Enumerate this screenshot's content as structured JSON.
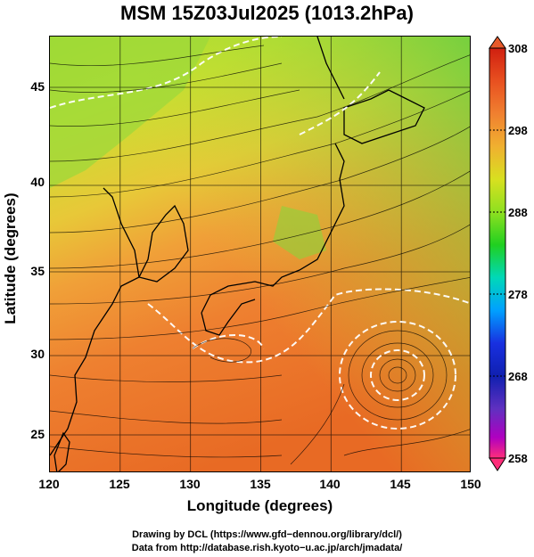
{
  "title": "MSM 15Z03Jul2025 (1013.2hPa)",
  "map": {
    "xlabel": "Longitude (degrees)",
    "ylabel": "Latitude  (degrees)",
    "x_ticks": [
      "120",
      "125",
      "130",
      "135",
      "140",
      "145",
      "150"
    ],
    "y_ticks": [
      "25",
      "30",
      "35",
      "40",
      "45"
    ],
    "lon_range": [
      120,
      150
    ],
    "lat_range": [
      22.4,
      47.6
    ],
    "field": "temperature shading with wind streamlines"
  },
  "colorbar": {
    "ticks": [
      "308",
      "298",
      "288",
      "278",
      "268",
      "258"
    ],
    "range": [
      258,
      308
    ],
    "colors": [
      "#e8e8e8",
      "#ff2e7a",
      "#b000c0",
      "#6030c0",
      "#1830e0",
      "#00a0ff",
      "#00d8b8",
      "#20d020",
      "#8ee020",
      "#d8e020",
      "#f0b030",
      "#f08030",
      "#e85020",
      "#d02010"
    ]
  },
  "credits": {
    "line1": "Drawing by DCL (https://www.gfd−dennou.org/library/dcl/)",
    "line2": "Data from http://database.rish.kyoto−u.ac.jp/arch/jmadata/"
  }
}
